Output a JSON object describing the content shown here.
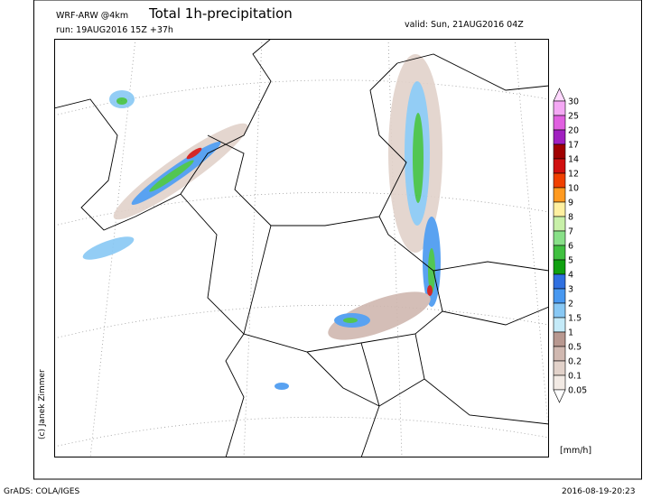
{
  "header": {
    "model": "WRF-ARW @4km",
    "run": "run: 19AUG2016 15Z +37h",
    "title": "Total 1h-precipitation",
    "valid": "valid: Sun, 21AUG2016 04Z"
  },
  "map": {
    "copyright": "(c) Janek Zimmer"
  },
  "colorbar": {
    "unit": "[mm/h]",
    "levels": [
      30,
      25,
      20,
      17,
      14,
      12,
      10,
      9,
      8,
      7,
      6,
      5,
      4,
      3,
      2,
      1.5,
      1,
      0.5,
      0.2,
      0.1,
      0.05
    ],
    "colors": [
      "#ffd8ff",
      "#f4a8f4",
      "#e060e0",
      "#a020c0",
      "#a00000",
      "#d01010",
      "#f04000",
      "#ff9a20",
      "#fff0a0",
      "#c8f0a8",
      "#88e088",
      "#40c040",
      "#10a010",
      "#3070e0",
      "#4898f0",
      "#88c8f4",
      "#c4eaf8",
      "#b89890",
      "#d0b8b0",
      "#e2d2ca",
      "#f2eae4",
      "#ffffff"
    ]
  },
  "footer": {
    "software": "GrADS: COLA/IGES",
    "timestamp": "2016-08-19-20:23"
  }
}
